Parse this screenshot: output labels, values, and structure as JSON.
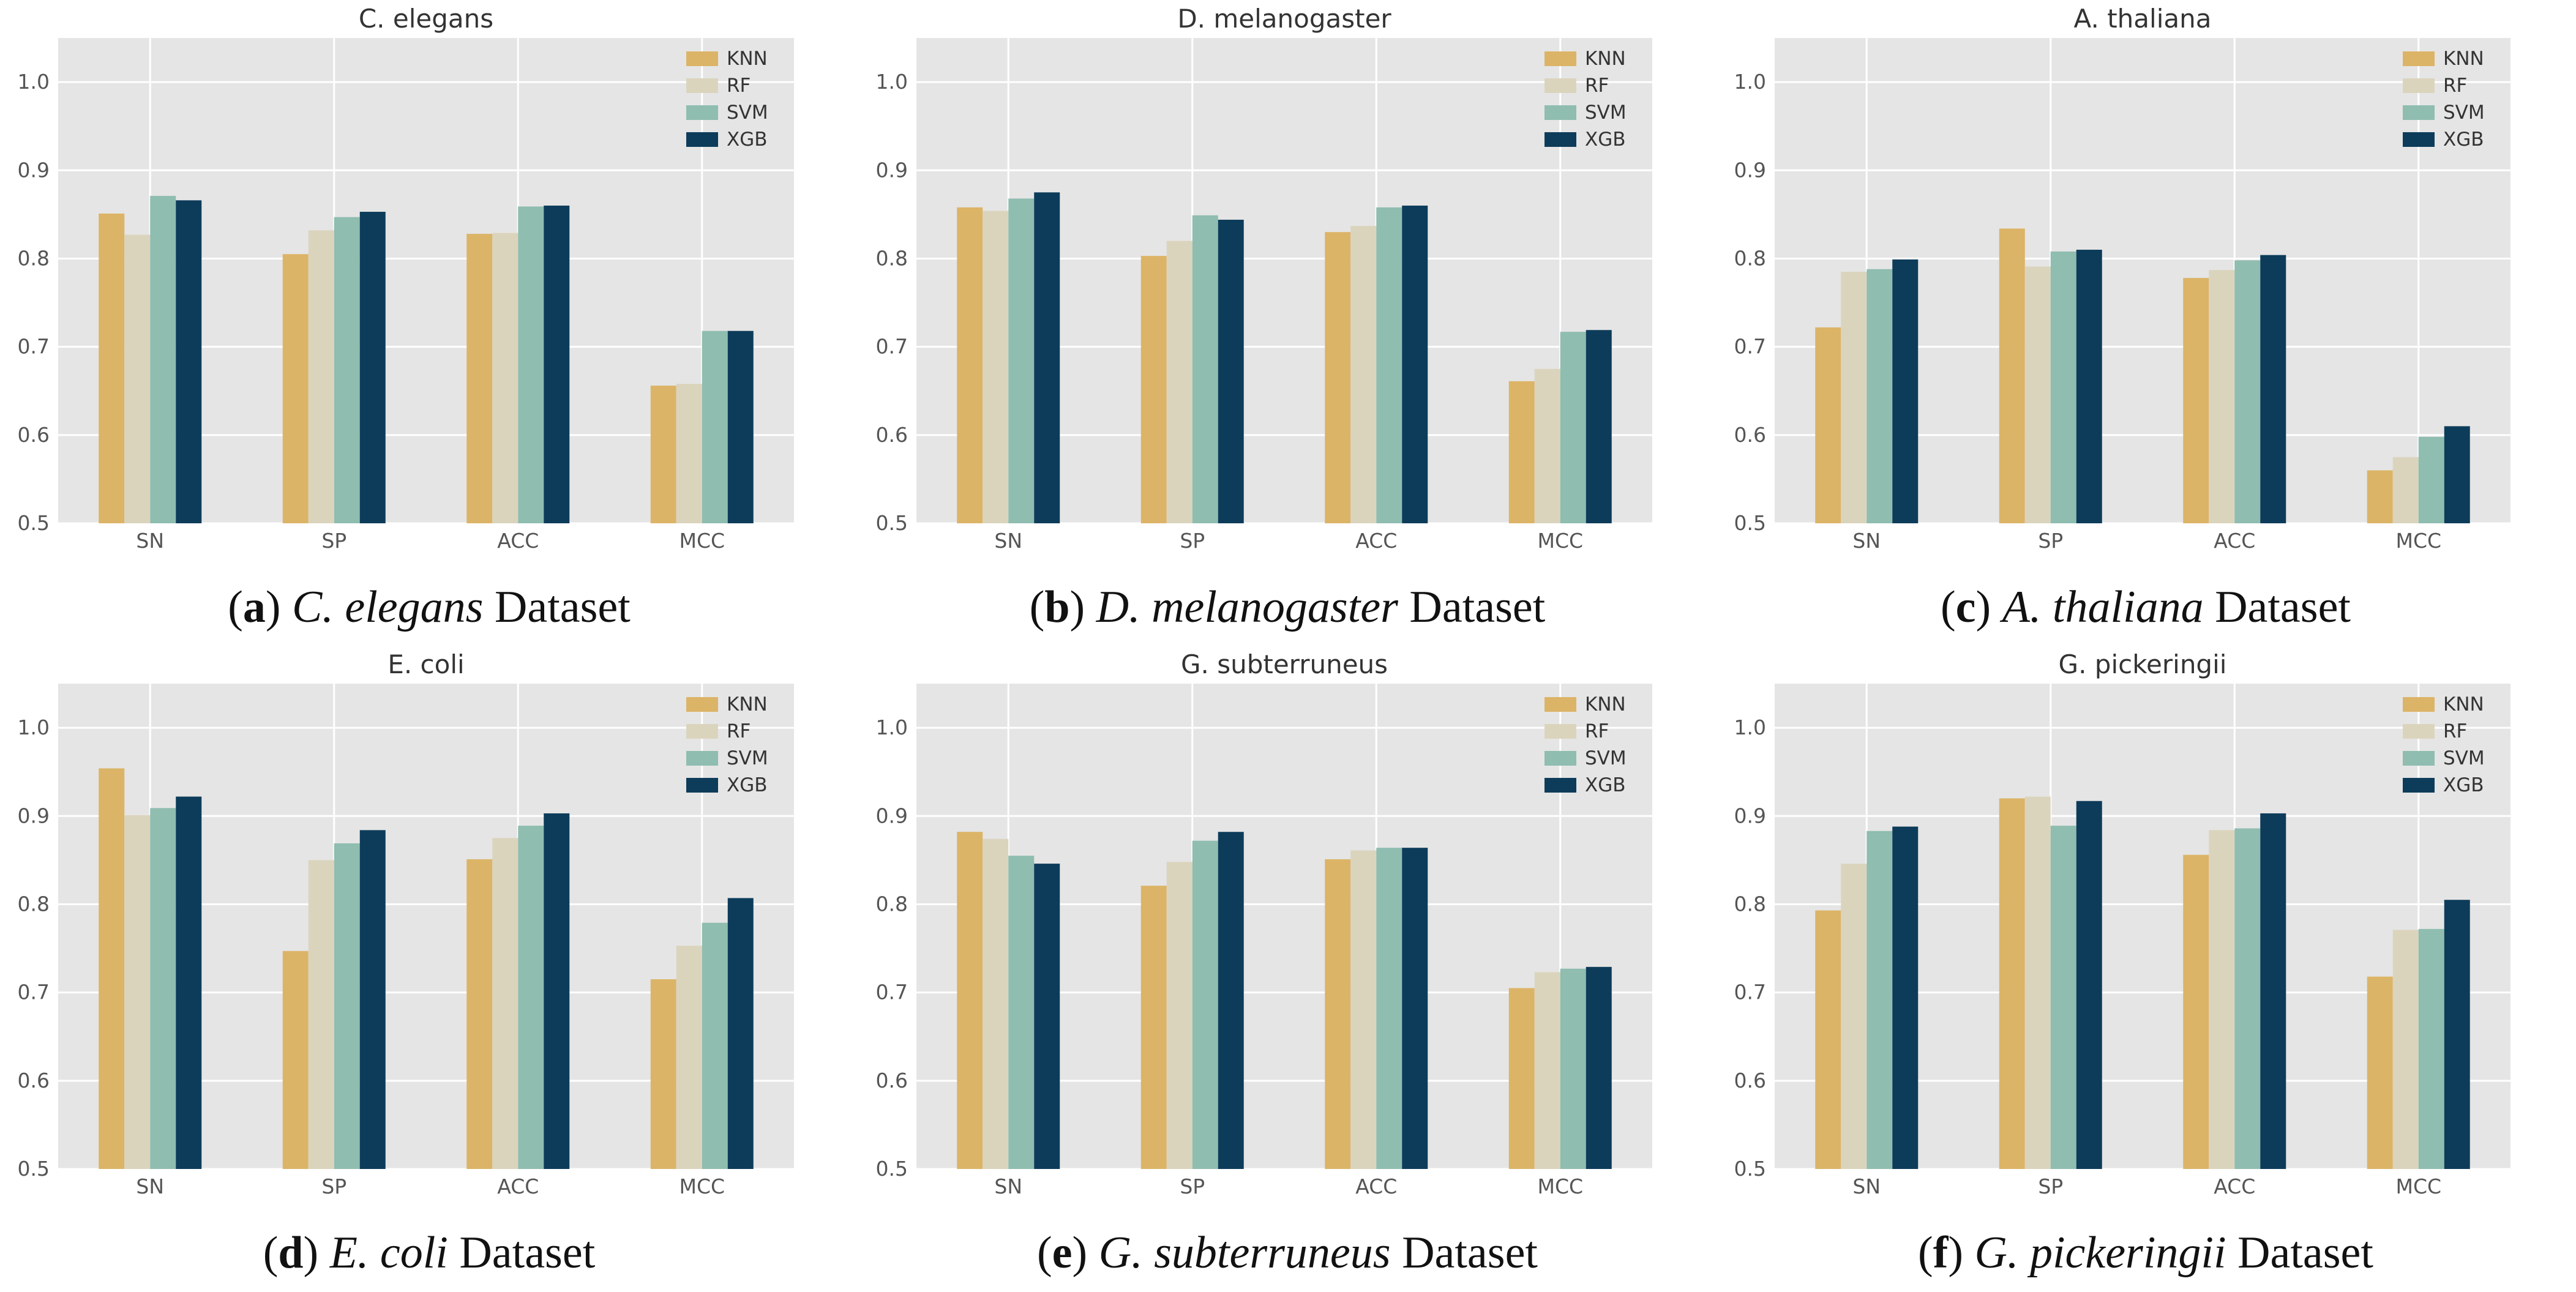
{
  "colors": {
    "KNN": "#dcb467",
    "RF": "#dbd4bd",
    "SVM": "#8fbdb0",
    "XGB": "#0d3c5a",
    "panel_bg": "#e5e5e5",
    "grid": "#ffffff"
  },
  "chart_data": [
    {
      "type": "bar",
      "title": "C. elegans",
      "caption": {
        "letter": "a",
        "species": "C. elegans",
        "suffix": "Dataset"
      },
      "categories": [
        "SN",
        "SP",
        "ACC",
        "MCC"
      ],
      "ylim": [
        0.5,
        1.05
      ],
      "yticks": [
        "0.5",
        "0.6",
        "0.7",
        "0.8",
        "0.9",
        "1.0"
      ],
      "legend": "top-right",
      "series": [
        {
          "name": "KNN",
          "values": [
            0.851,
            0.805,
            0.828,
            0.656
          ]
        },
        {
          "name": "RF",
          "values": [
            0.827,
            0.832,
            0.829,
            0.658
          ]
        },
        {
          "name": "SVM",
          "values": [
            0.871,
            0.847,
            0.859,
            0.718
          ]
        },
        {
          "name": "XGB",
          "values": [
            0.866,
            0.853,
            0.86,
            0.718
          ]
        }
      ]
    },
    {
      "type": "bar",
      "title": "D. melanogaster",
      "caption": {
        "letter": "b",
        "species": "D. melanogaster",
        "suffix": "Dataset"
      },
      "categories": [
        "SN",
        "SP",
        "ACC",
        "MCC"
      ],
      "ylim": [
        0.5,
        1.05
      ],
      "yticks": [
        "0.5",
        "0.6",
        "0.7",
        "0.8",
        "0.9",
        "1.0"
      ],
      "legend": "top-right",
      "series": [
        {
          "name": "KNN",
          "values": [
            0.858,
            0.803,
            0.83,
            0.661
          ]
        },
        {
          "name": "RF",
          "values": [
            0.854,
            0.82,
            0.837,
            0.675
          ]
        },
        {
          "name": "SVM",
          "values": [
            0.868,
            0.849,
            0.858,
            0.717
          ]
        },
        {
          "name": "XGB",
          "values": [
            0.875,
            0.844,
            0.86,
            0.719
          ]
        }
      ]
    },
    {
      "type": "bar",
      "title": "A. thaliana",
      "caption": {
        "letter": "c",
        "species": "A. thaliana",
        "suffix": "Dataset"
      },
      "categories": [
        "SN",
        "SP",
        "ACC",
        "MCC"
      ],
      "ylim": [
        0.5,
        1.05
      ],
      "yticks": [
        "0.5",
        "0.6",
        "0.7",
        "0.8",
        "0.9",
        "1.0"
      ],
      "legend": "top-right",
      "series": [
        {
          "name": "KNN",
          "values": [
            0.722,
            0.834,
            0.778,
            0.56
          ]
        },
        {
          "name": "RF",
          "values": [
            0.785,
            0.791,
            0.787,
            0.575
          ]
        },
        {
          "name": "SVM",
          "values": [
            0.788,
            0.808,
            0.798,
            0.598
          ]
        },
        {
          "name": "XGB",
          "values": [
            0.799,
            0.81,
            0.804,
            0.61
          ]
        }
      ]
    },
    {
      "type": "bar",
      "title": "E. coli",
      "caption": {
        "letter": "d",
        "species": "E. coli",
        "suffix": "Dataset"
      },
      "categories": [
        "SN",
        "SP",
        "ACC",
        "MCC"
      ],
      "ylim": [
        0.5,
        1.05
      ],
      "yticks": [
        "0.5",
        "0.6",
        "0.7",
        "0.8",
        "0.9",
        "1.0"
      ],
      "legend": "top-right",
      "series": [
        {
          "name": "KNN",
          "values": [
            0.954,
            0.747,
            0.851,
            0.715
          ]
        },
        {
          "name": "RF",
          "values": [
            0.901,
            0.85,
            0.875,
            0.753
          ]
        },
        {
          "name": "SVM",
          "values": [
            0.909,
            0.869,
            0.889,
            0.779
          ]
        },
        {
          "name": "XGB",
          "values": [
            0.922,
            0.884,
            0.903,
            0.807
          ]
        }
      ]
    },
    {
      "type": "bar",
      "title": "G. subterruneus",
      "caption": {
        "letter": "e",
        "species": "G. subterruneus",
        "suffix": "Dataset"
      },
      "categories": [
        "SN",
        "SP",
        "ACC",
        "MCC"
      ],
      "ylim": [
        0.5,
        1.05
      ],
      "yticks": [
        "0.5",
        "0.6",
        "0.7",
        "0.8",
        "0.9",
        "1.0"
      ],
      "legend": "top-right",
      "series": [
        {
          "name": "KNN",
          "values": [
            0.882,
            0.821,
            0.851,
            0.705
          ]
        },
        {
          "name": "RF",
          "values": [
            0.874,
            0.848,
            0.861,
            0.723
          ]
        },
        {
          "name": "SVM",
          "values": [
            0.855,
            0.872,
            0.864,
            0.727
          ]
        },
        {
          "name": "XGB",
          "values": [
            0.846,
            0.882,
            0.864,
            0.729
          ]
        }
      ]
    },
    {
      "type": "bar",
      "title": "G. pickeringii",
      "caption": {
        "letter": "f",
        "species": "G. pickeringii",
        "suffix": "Dataset"
      },
      "categories": [
        "SN",
        "SP",
        "ACC",
        "MCC"
      ],
      "ylim": [
        0.5,
        1.05
      ],
      "yticks": [
        "0.5",
        "0.6",
        "0.7",
        "0.8",
        "0.9",
        "1.0"
      ],
      "legend": "top-right",
      "series": [
        {
          "name": "KNN",
          "values": [
            0.793,
            0.92,
            0.856,
            0.718
          ]
        },
        {
          "name": "RF",
          "values": [
            0.846,
            0.922,
            0.884,
            0.771
          ]
        },
        {
          "name": "SVM",
          "values": [
            0.883,
            0.889,
            0.886,
            0.772
          ]
        },
        {
          "name": "XGB",
          "values": [
            0.888,
            0.917,
            0.903,
            0.805
          ]
        }
      ]
    }
  ]
}
